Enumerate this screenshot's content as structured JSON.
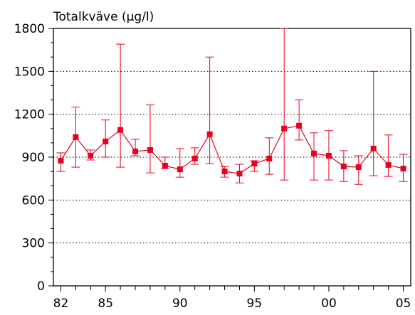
{
  "chart_data": {
    "type": "line",
    "title": "Totalkväve (µg/l)",
    "xlabel": "",
    "ylabel": "",
    "ylim": [
      0,
      1800
    ],
    "xlim": [
      1981.5,
      2005.5
    ],
    "yticks": [
      0,
      300,
      600,
      900,
      1200,
      1500,
      1800
    ],
    "xticks": [
      {
        "value": 1982,
        "label": "82"
      },
      {
        "value": 1985,
        "label": "85"
      },
      {
        "value": 1990,
        "label": "90"
      },
      {
        "value": 1995,
        "label": "95"
      },
      {
        "value": 2000,
        "label": "00"
      },
      {
        "value": 2005,
        "label": "05"
      }
    ],
    "grid": "horizontal dotted",
    "color": "#e8001c",
    "series": [
      {
        "points": [
          {
            "x": 1982,
            "y": 875,
            "low": 800,
            "high": 930
          },
          {
            "x": 1983,
            "y": 1040,
            "low": 830,
            "high": 1250
          },
          {
            "x": 1984,
            "y": 910,
            "low": 880,
            "high": 950
          },
          {
            "x": 1985,
            "y": 1010,
            "low": 900,
            "high": 1160
          },
          {
            "x": 1986,
            "y": 1090,
            "low": 830,
            "high": 1690
          },
          {
            "x": 1987,
            "y": 940,
            "low": 910,
            "high": 1025
          },
          {
            "x": 1988,
            "y": 950,
            "low": 790,
            "high": 1265
          },
          {
            "x": 1989,
            "y": 840,
            "low": 820,
            "high": 900
          },
          {
            "x": 1990,
            "y": 815,
            "low": 760,
            "high": 960
          },
          {
            "x": 1991,
            "y": 890,
            "low": 850,
            "high": 965
          },
          {
            "x": 1992,
            "y": 1060,
            "low": 855,
            "high": 1600
          },
          {
            "x": 1993,
            "y": 800,
            "low": 760,
            "high": 835
          },
          {
            "x": 1994,
            "y": 785,
            "low": 720,
            "high": 850
          },
          {
            "x": 1995,
            "y": 855,
            "low": 800,
            "high": 875
          },
          {
            "x": 1996,
            "y": 890,
            "low": 780,
            "high": 1035
          },
          {
            "x": 1997,
            "y": 1100,
            "low": 740,
            "high": 1800
          },
          {
            "x": 1998,
            "y": 1120,
            "low": 1020,
            "high": 1300
          },
          {
            "x": 1999,
            "y": 925,
            "low": 740,
            "high": 1070
          },
          {
            "x": 2000,
            "y": 910,
            "low": 740,
            "high": 1085
          },
          {
            "x": 2001,
            "y": 835,
            "low": 730,
            "high": 945
          },
          {
            "x": 2002,
            "y": 830,
            "low": 710,
            "high": 910
          },
          {
            "x": 2003,
            "y": 960,
            "low": 770,
            "high": 1500
          },
          {
            "x": 2004,
            "y": 845,
            "low": 765,
            "high": 1055
          },
          {
            "x": 2005,
            "y": 820,
            "low": 730,
            "high": 920
          }
        ]
      }
    ]
  }
}
